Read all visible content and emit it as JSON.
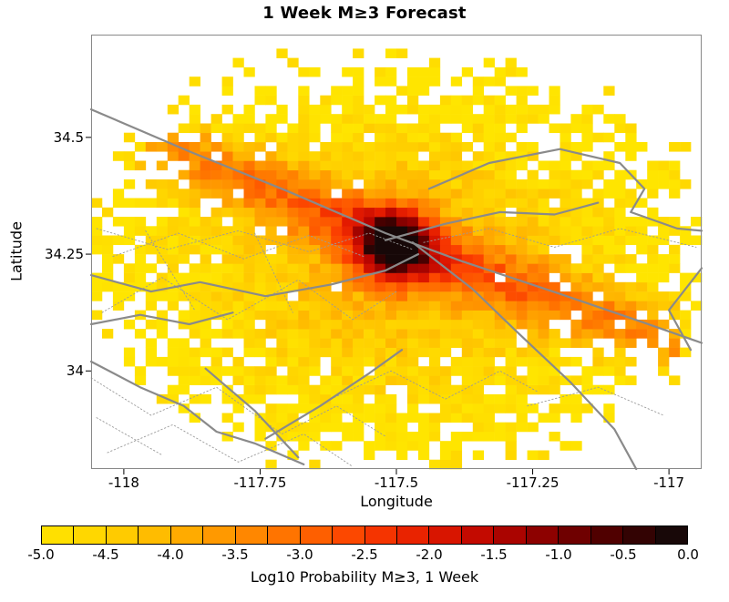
{
  "chart_data": {
    "type": "heatmap",
    "title": "1 Week M≥3 Forecast",
    "xlabel": "Longitude",
    "ylabel": "Latitude",
    "x_range": [
      -118.06,
      -116.94
    ],
    "y_range": [
      33.79,
      34.72
    ],
    "x_ticks": [
      -118,
      -117.75,
      -117.5,
      -117.25,
      -117
    ],
    "x_tick_labels": [
      "-118",
      "-117.75",
      "-117.5",
      "-117.25",
      "-117"
    ],
    "y_ticks": [
      34.5,
      34.25,
      34
    ],
    "y_tick_labels": [
      "34.5",
      "34.25",
      "34"
    ],
    "grid": {
      "cell_size_deg": 0.02,
      "lon_start": -118.06,
      "lat_start": 33.79,
      "cols": 56,
      "rows": 46
    },
    "field": {
      "seed": 20240613,
      "base_min": -5.15,
      "disk": {
        "cx": -117.5,
        "cy": 34.235,
        "rx": 0.545,
        "ry": 0.42,
        "gain": 1.25
      },
      "ridge": {
        "points": [
          [
            -118.06,
            34.55
          ],
          [
            -117.505,
            34.275
          ],
          [
            -116.94,
            34.04
          ]
        ],
        "sigma": 0.06,
        "amp": 1.6
      },
      "peak": {
        "lon": -117.505,
        "lat": 34.27,
        "sigma": 0.07,
        "amp": 3.4
      },
      "noise": 0.7,
      "lat_scale": 0.86,
      "value_max": -0.12,
      "edge_jitter": 0.07,
      "dropout_base": 0.04,
      "dropout_slope": 0.6,
      "outlier_prob": 0.2
    },
    "colormap": {
      "values": [
        -5.0,
        -4.5,
        -4.0,
        -3.5,
        -3.0,
        -2.5,
        -2.0,
        -1.5,
        -1.0,
        -0.5,
        0.0
      ],
      "colors": [
        "#ffe500",
        "#ffd200",
        "#ffb400",
        "#ff9000",
        "#ff6a00",
        "#fb3c00",
        "#e31a00",
        "#b80500",
        "#7e0000",
        "#400000",
        "#0a0a0a"
      ]
    },
    "colorbar": {
      "label": "Log10 Probability M≥3, 1 Week",
      "range": [
        -5,
        0
      ],
      "segments": 20,
      "tick_labels": [
        "-5.0",
        "-4.5",
        "-4.0",
        "-3.5",
        "-3.0",
        "-2.5",
        "-2.0",
        "-1.5",
        "-1.0",
        "-0.5",
        "0.0"
      ]
    },
    "faults": {
      "solid_color": "#8a8a8a",
      "solid_width": 2.2,
      "dotted_color": "#9b9b9b",
      "dotted_width": 0.9,
      "solid": [
        [
          [
            -118.06,
            34.56
          ],
          [
            -117.88,
            34.47
          ],
          [
            -117.7,
            34.385
          ],
          [
            -117.52,
            34.295
          ],
          [
            -117.38,
            34.235
          ],
          [
            -117.2,
            34.165
          ],
          [
            -117.05,
            34.105
          ],
          [
            -116.94,
            34.06
          ]
        ],
        [
          [
            -117.47,
            34.275
          ],
          [
            -117.36,
            34.175
          ],
          [
            -117.28,
            34.085
          ],
          [
            -117.18,
            33.975
          ],
          [
            -117.1,
            33.875
          ],
          [
            -117.06,
            33.79
          ]
        ],
        [
          [
            -117.44,
            34.39
          ],
          [
            -117.33,
            34.445
          ],
          [
            -117.2,
            34.475
          ],
          [
            -117.09,
            34.445
          ],
          [
            -117.045,
            34.39
          ],
          [
            -117.07,
            34.34
          ],
          [
            -116.985,
            34.305
          ],
          [
            -116.94,
            34.3
          ]
        ],
        [
          [
            -118.06,
            34.205
          ],
          [
            -117.95,
            34.17
          ],
          [
            -117.86,
            34.19
          ],
          [
            -117.74,
            34.16
          ],
          [
            -117.62,
            34.185
          ],
          [
            -117.52,
            34.215
          ],
          [
            -117.46,
            34.25
          ]
        ],
        [
          [
            -118.06,
            34.1
          ],
          [
            -117.97,
            34.12
          ],
          [
            -117.88,
            34.1
          ],
          [
            -117.8,
            34.125
          ]
        ],
        [
          [
            -118.06,
            34.02
          ],
          [
            -117.97,
            33.965
          ],
          [
            -117.89,
            33.925
          ],
          [
            -117.83,
            33.87
          ],
          [
            -117.76,
            33.845
          ],
          [
            -117.67,
            33.8
          ]
        ],
        [
          [
            -117.74,
            33.855
          ],
          [
            -117.64,
            33.925
          ],
          [
            -117.55,
            33.995
          ],
          [
            -117.49,
            34.045
          ]
        ],
        [
          [
            -117.52,
            34.28
          ],
          [
            -117.41,
            34.315
          ],
          [
            -117.31,
            34.34
          ],
          [
            -117.21,
            34.335
          ],
          [
            -117.13,
            34.36
          ]
        ],
        [
          [
            -116.94,
            34.22
          ],
          [
            -117.0,
            34.13
          ],
          [
            -116.96,
            34.045
          ]
        ],
        [
          [
            -117.85,
            34.005
          ],
          [
            -117.76,
            33.915
          ],
          [
            -117.68,
            33.815
          ]
        ]
      ],
      "dotted": [
        [
          [
            -118.05,
            34.305
          ],
          [
            -117.92,
            34.26
          ],
          [
            -117.79,
            34.3
          ],
          [
            -117.66,
            34.255
          ],
          [
            -117.55,
            34.295
          ],
          [
            -117.47,
            34.26
          ]
        ],
        [
          [
            -118.02,
            34.245
          ],
          [
            -117.9,
            34.295
          ],
          [
            -117.78,
            34.24
          ],
          [
            -117.66,
            34.29
          ],
          [
            -117.56,
            34.245
          ]
        ],
        [
          [
            -118.04,
            34.125
          ],
          [
            -117.93,
            34.2
          ],
          [
            -117.81,
            34.11
          ],
          [
            -117.68,
            34.195
          ],
          [
            -117.58,
            34.11
          ],
          [
            -117.5,
            34.17
          ]
        ],
        [
          [
            -117.96,
            34.3
          ],
          [
            -117.87,
            34.13
          ]
        ],
        [
          [
            -117.76,
            34.295
          ],
          [
            -117.69,
            34.125
          ]
        ],
        [
          [
            -118.06,
            33.985
          ],
          [
            -117.95,
            33.905
          ],
          [
            -117.83,
            33.965
          ],
          [
            -117.71,
            33.865
          ],
          [
            -117.61,
            33.925
          ],
          [
            -117.52,
            33.86
          ]
        ],
        [
          [
            -118.03,
            33.825
          ],
          [
            -117.91,
            33.885
          ],
          [
            -117.79,
            33.805
          ],
          [
            -117.67,
            33.865
          ],
          [
            -117.58,
            33.795
          ]
        ],
        [
          [
            -117.45,
            34.275
          ],
          [
            -117.33,
            34.305
          ],
          [
            -117.21,
            34.265
          ],
          [
            -117.09,
            34.305
          ],
          [
            -116.95,
            34.265
          ]
        ],
        [
          [
            -117.62,
            33.94
          ],
          [
            -117.51,
            34.0
          ],
          [
            -117.41,
            33.94
          ],
          [
            -117.31,
            34.0
          ],
          [
            -117.24,
            33.955
          ]
        ],
        [
          [
            -117.26,
            33.925
          ],
          [
            -117.13,
            33.965
          ],
          [
            -117.01,
            33.905
          ]
        ],
        [
          [
            -118.05,
            33.9
          ],
          [
            -117.93,
            33.82
          ]
        ]
      ]
    }
  }
}
